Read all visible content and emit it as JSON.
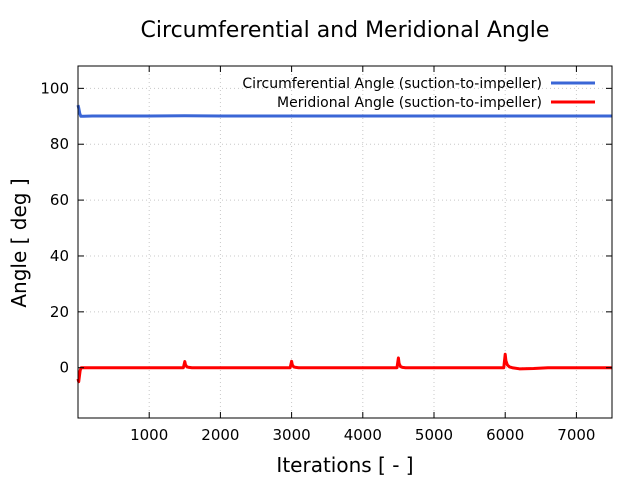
{
  "chart_data": {
    "type": "line",
    "title": "Circumferential and Meridional Angle",
    "xlabel": "Iterations [ - ]",
    "ylabel": "Angle [ deg ]",
    "xlim": [
      0,
      7500
    ],
    "ylim": [
      -18,
      108
    ],
    "xticks": [
      1000,
      2000,
      3000,
      4000,
      5000,
      6000,
      7000
    ],
    "yticks": [
      0,
      20,
      40,
      60,
      80,
      100
    ],
    "grid": true,
    "legend_position": "top-right",
    "series": [
      {
        "name": "Circumferential Angle (suction-to-impeller)",
        "color": "#3a66d6",
        "x": [
          0,
          10,
          25,
          40,
          80,
          200,
          500,
          1000,
          1500,
          2000,
          2500,
          3000,
          3500,
          4000,
          4500,
          5000,
          5500,
          6000,
          6500,
          7000,
          7500
        ],
        "y": [
          94,
          93,
          91,
          90,
          90,
          90.1,
          90.1,
          90.1,
          90.2,
          90.1,
          90.1,
          90.1,
          90.1,
          90.1,
          90.1,
          90.1,
          90.1,
          90.1,
          90.1,
          90.1,
          90.1
        ]
      },
      {
        "name": "Meridional Angle (suction-to-impeller)",
        "color": "#ff0000",
        "x": [
          0,
          10,
          20,
          30,
          45,
          60,
          100,
          200,
          500,
          1000,
          1480,
          1500,
          1510,
          1530,
          1560,
          1600,
          2000,
          2500,
          2980,
          3000,
          3010,
          3030,
          3060,
          3100,
          3500,
          4000,
          4480,
          4500,
          4510,
          4530,
          4560,
          4600,
          5000,
          5500,
          5980,
          6000,
          6010,
          6030,
          6060,
          6100,
          6200,
          6400,
          6600,
          7000,
          7500
        ],
        "y": [
          -4,
          -5,
          -3,
          -1,
          0,
          0,
          0,
          0,
          0,
          0,
          0,
          2.2,
          1,
          0.3,
          0.1,
          0,
          0,
          0,
          0,
          2.3,
          1,
          0.3,
          0.1,
          0,
          0,
          0,
          0,
          3.5,
          1.5,
          0.4,
          0.1,
          0,
          0,
          0,
          0,
          4.8,
          2.5,
          1,
          0.3,
          0,
          -0.4,
          -0.3,
          0,
          0,
          0
        ]
      }
    ]
  }
}
